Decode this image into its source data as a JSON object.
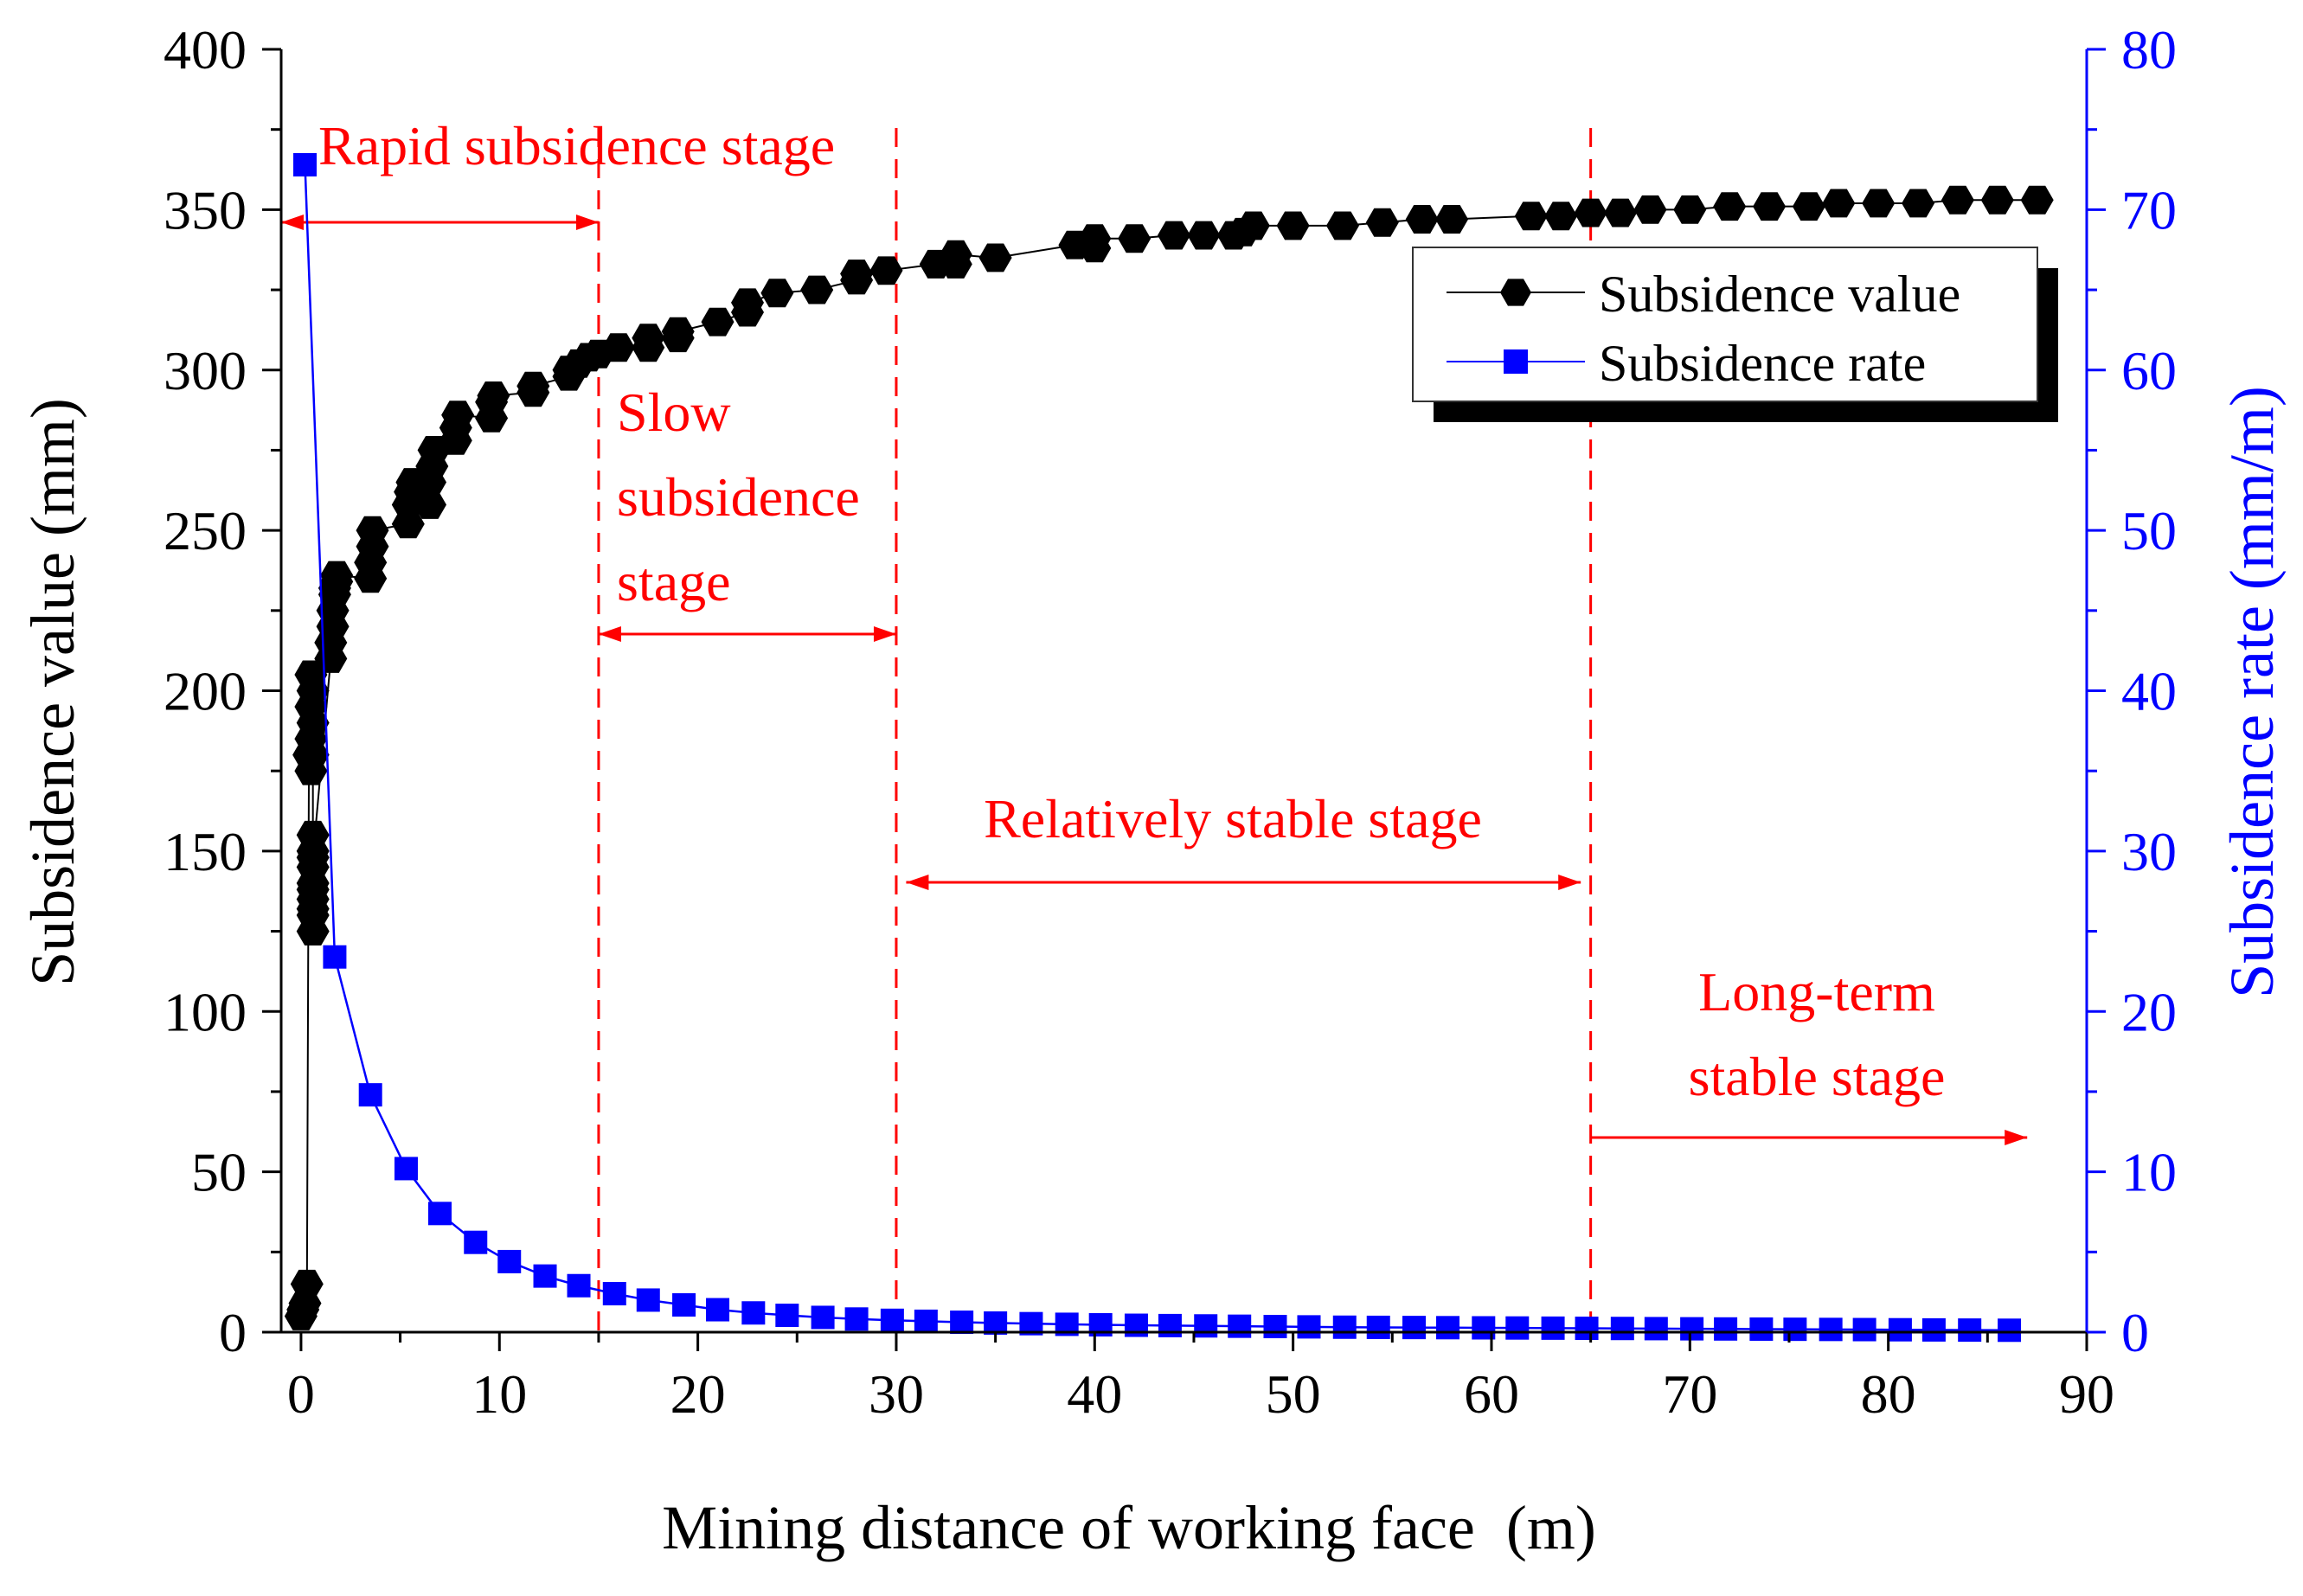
{
  "chart_data": {
    "type": "scatter",
    "title": "",
    "xlabel": "Mining distance of working face  (m)",
    "ylabel_left": "Subsidence value (mm)",
    "ylabel_right": "Subsidence rate (mm/m)",
    "xlim": [
      -1,
      90
    ],
    "ylim_left": [
      0,
      400
    ],
    "ylim_right": [
      0,
      80
    ],
    "x_ticks": [
      "0",
      "10",
      "20",
      "30",
      "40",
      "50",
      "60",
      "70",
      "80",
      "90"
    ],
    "x_tick_values": [
      0,
      10,
      20,
      30,
      40,
      50,
      60,
      70,
      80,
      90
    ],
    "y_left_ticks": [
      "0",
      "50",
      "100",
      "150",
      "200",
      "250",
      "300",
      "350",
      "400"
    ],
    "y_left_tick_values": [
      0,
      50,
      100,
      150,
      200,
      250,
      300,
      350,
      400
    ],
    "y_right_ticks": [
      "0",
      "10",
      "20",
      "30",
      "40",
      "50",
      "60",
      "70",
      "80"
    ],
    "y_right_tick_values": [
      0,
      10,
      20,
      30,
      40,
      50,
      60,
      70,
      80
    ],
    "grid": false,
    "legend_position": "top-right",
    "series": [
      {
        "name": "Subsidence value",
        "axis": "left",
        "marker": "hexagon",
        "color": "#000000",
        "x": [
          0,
          0.1,
          0.2,
          0.3,
          0.4,
          0.5,
          0.5,
          0.5,
          0.5,
          0.6,
          0.6,
          0.6,
          0.6,
          0.6,
          0.6,
          0.6,
          0.6,
          0.6,
          0.6,
          0.6,
          0.6,
          0.6,
          1.5,
          1.5,
          1.6,
          1.6,
          1.7,
          1.7,
          1.8,
          1.8,
          3.5,
          3.5,
          3.6,
          3.6,
          5.4,
          5.4,
          5.5,
          5.6,
          6.5,
          6.5,
          6.6,
          6.7,
          7.8,
          7.8,
          7.9,
          9.6,
          9.6,
          9.7,
          11.7,
          11.7,
          13.5,
          13.5,
          14.0,
          14.5,
          15.0,
          16.0,
          17.5,
          17.5,
          19.0,
          19.0,
          21.0,
          22.5,
          22.5,
          24.0,
          26.0,
          28.0,
          28.0,
          29.5,
          32.0,
          33.0,
          33.0,
          35.0,
          39.0,
          40.0,
          40.0,
          42.0,
          44.0,
          45.5,
          47.0,
          47.5,
          48.0,
          50.0,
          52.5,
          54.5,
          56.5,
          58.0,
          62.0,
          63.5,
          65.0,
          66.5,
          68.0,
          70.0,
          72.0,
          74.0,
          76.0,
          77.5,
          79.5,
          81.5,
          83.5,
          85.5,
          87.5
        ],
        "y": [
          5,
          7,
          9,
          15,
          180,
          175,
          185,
          195,
          205,
          200,
          190,
          180,
          155,
          150,
          145,
          140,
          135,
          130,
          125,
          132,
          138,
          148,
          210,
          215,
          220,
          225,
          230,
          232,
          234,
          236,
          235,
          240,
          245,
          250,
          252,
          258,
          262,
          265,
          258,
          265,
          270,
          275,
          278,
          282,
          286,
          285,
          290,
          292,
          293,
          295,
          298,
          300,
          302,
          304,
          305,
          307,
          307,
          310,
          310,
          312,
          315,
          318,
          321,
          324,
          325,
          328,
          330,
          331,
          333,
          333,
          336,
          335,
          339,
          338,
          341,
          341,
          342,
          342,
          342,
          343,
          345,
          345,
          345,
          346,
          347,
          347,
          348,
          348,
          349,
          349,
          350,
          350,
          351,
          351,
          351,
          352,
          352,
          352,
          353,
          353,
          353
        ]
      },
      {
        "name": "Subsidence rate",
        "axis": "right",
        "marker": "square",
        "color": "#0000ff",
        "x": [
          0.2,
          1.7,
          3.5,
          5.3,
          7.0,
          8.8,
          10.5,
          12.3,
          14.0,
          15.8,
          17.5,
          19.3,
          21.0,
          22.8,
          24.5,
          26.3,
          28.0,
          29.8,
          31.5,
          33.3,
          35.0,
          36.8,
          38.6,
          40.3,
          42.1,
          43.8,
          45.6,
          47.3,
          49.1,
          50.8,
          52.6,
          54.3,
          56.1,
          57.8,
          59.6,
          61.3,
          63.1,
          64.8,
          66.6,
          68.3,
          70.1,
          71.8,
          73.6,
          75.3,
          77.1,
          78.8,
          80.6,
          82.3,
          84.1,
          86.1
        ],
        "y": [
          72.8,
          23.4,
          14.8,
          10.2,
          7.4,
          5.6,
          4.4,
          3.5,
          2.9,
          2.4,
          2.0,
          1.7,
          1.4,
          1.2,
          1.05,
          0.92,
          0.82,
          0.74,
          0.68,
          0.62,
          0.57,
          0.53,
          0.49,
          0.46,
          0.43,
          0.41,
          0.39,
          0.37,
          0.35,
          0.33,
          0.31,
          0.3,
          0.29,
          0.28,
          0.27,
          0.26,
          0.25,
          0.24,
          0.23,
          0.22,
          0.21,
          0.2,
          0.19,
          0.18,
          0.17,
          0.16,
          0.15,
          0.14,
          0.13,
          0.12
        ]
      }
    ],
    "stage_boundaries": [
      15,
      30,
      65
    ],
    "annotations": [
      {
        "id": "rapid",
        "lines": [
          "Rapid subsidence stage"
        ],
        "arrow_from": -1,
        "arrow_to": 15
      },
      {
        "id": "slow",
        "lines": [
          "Slow",
          "subsidence",
          "stage"
        ],
        "arrow_from": 15,
        "arrow_to": 30
      },
      {
        "id": "relatively",
        "lines": [
          "Relatively stable stage"
        ],
        "arrow_from": 30.5,
        "arrow_to": 64.5
      },
      {
        "id": "longterm",
        "lines": [
          "Long-term",
          "stable stage"
        ],
        "arrow_from": 65,
        "arrow_to": 87
      }
    ]
  },
  "colors": {
    "axis": "#000000",
    "left_series": "#000000",
    "right_series": "#0000ff",
    "right_axis": "#0000ff",
    "annotation": "#ff0000"
  }
}
